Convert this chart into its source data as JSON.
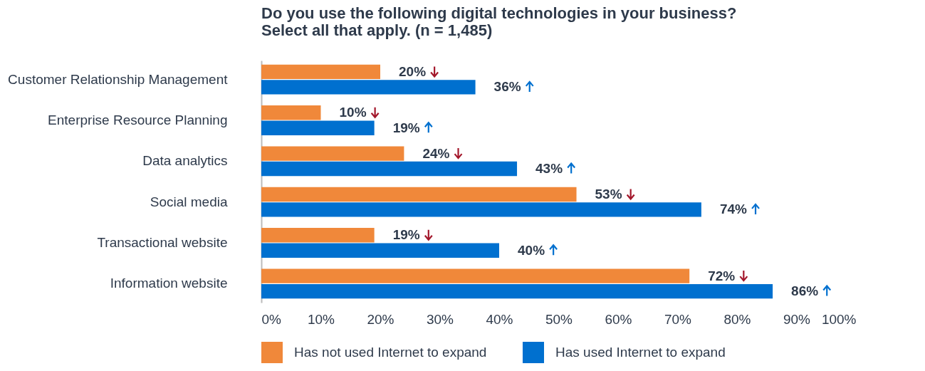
{
  "chart_data": {
    "type": "bar",
    "orientation": "horizontal",
    "title": "Do you use the following digital technologies in your business?\nSelect all that apply. (n = 1,485)",
    "categories": [
      "Customer Relationship Management",
      "Enterprise Resource Planning",
      "Data analytics",
      "Social media",
      "Transactional website",
      "Information website"
    ],
    "series": [
      {
        "name": "Has not used Internet to expand",
        "color": "#f0883a",
        "values": [
          20,
          10,
          24,
          53,
          19,
          72
        ],
        "value_labels": [
          "20%",
          "10%",
          "24%",
          "53%",
          "19%",
          "72%"
        ]
      },
      {
        "name": "Has used Internet to expand",
        "color": "#0070cf",
        "values": [
          36,
          19,
          43,
          74,
          40,
          86
        ],
        "value_labels": [
          "36%",
          "19%",
          "43%",
          "74%",
          "40%",
          "86%"
        ]
      }
    ],
    "xlim": [
      0,
      100
    ],
    "xticks": [
      {
        "value": 0,
        "label": "0%"
      },
      {
        "value": 10,
        "label": "10%"
      },
      {
        "value": 20,
        "label": "20%"
      },
      {
        "value": 30,
        "label": "30%"
      },
      {
        "value": 40,
        "label": "40%"
      },
      {
        "value": 50,
        "label": "50%"
      },
      {
        "value": 60,
        "label": "60%"
      },
      {
        "value": 70,
        "label": "70%"
      },
      {
        "value": 80,
        "label": "80%"
      },
      {
        "value": 90,
        "label": "90%"
      },
      {
        "value": 100,
        "label": "100%"
      }
    ],
    "grid": false,
    "legend": "bottom"
  }
}
